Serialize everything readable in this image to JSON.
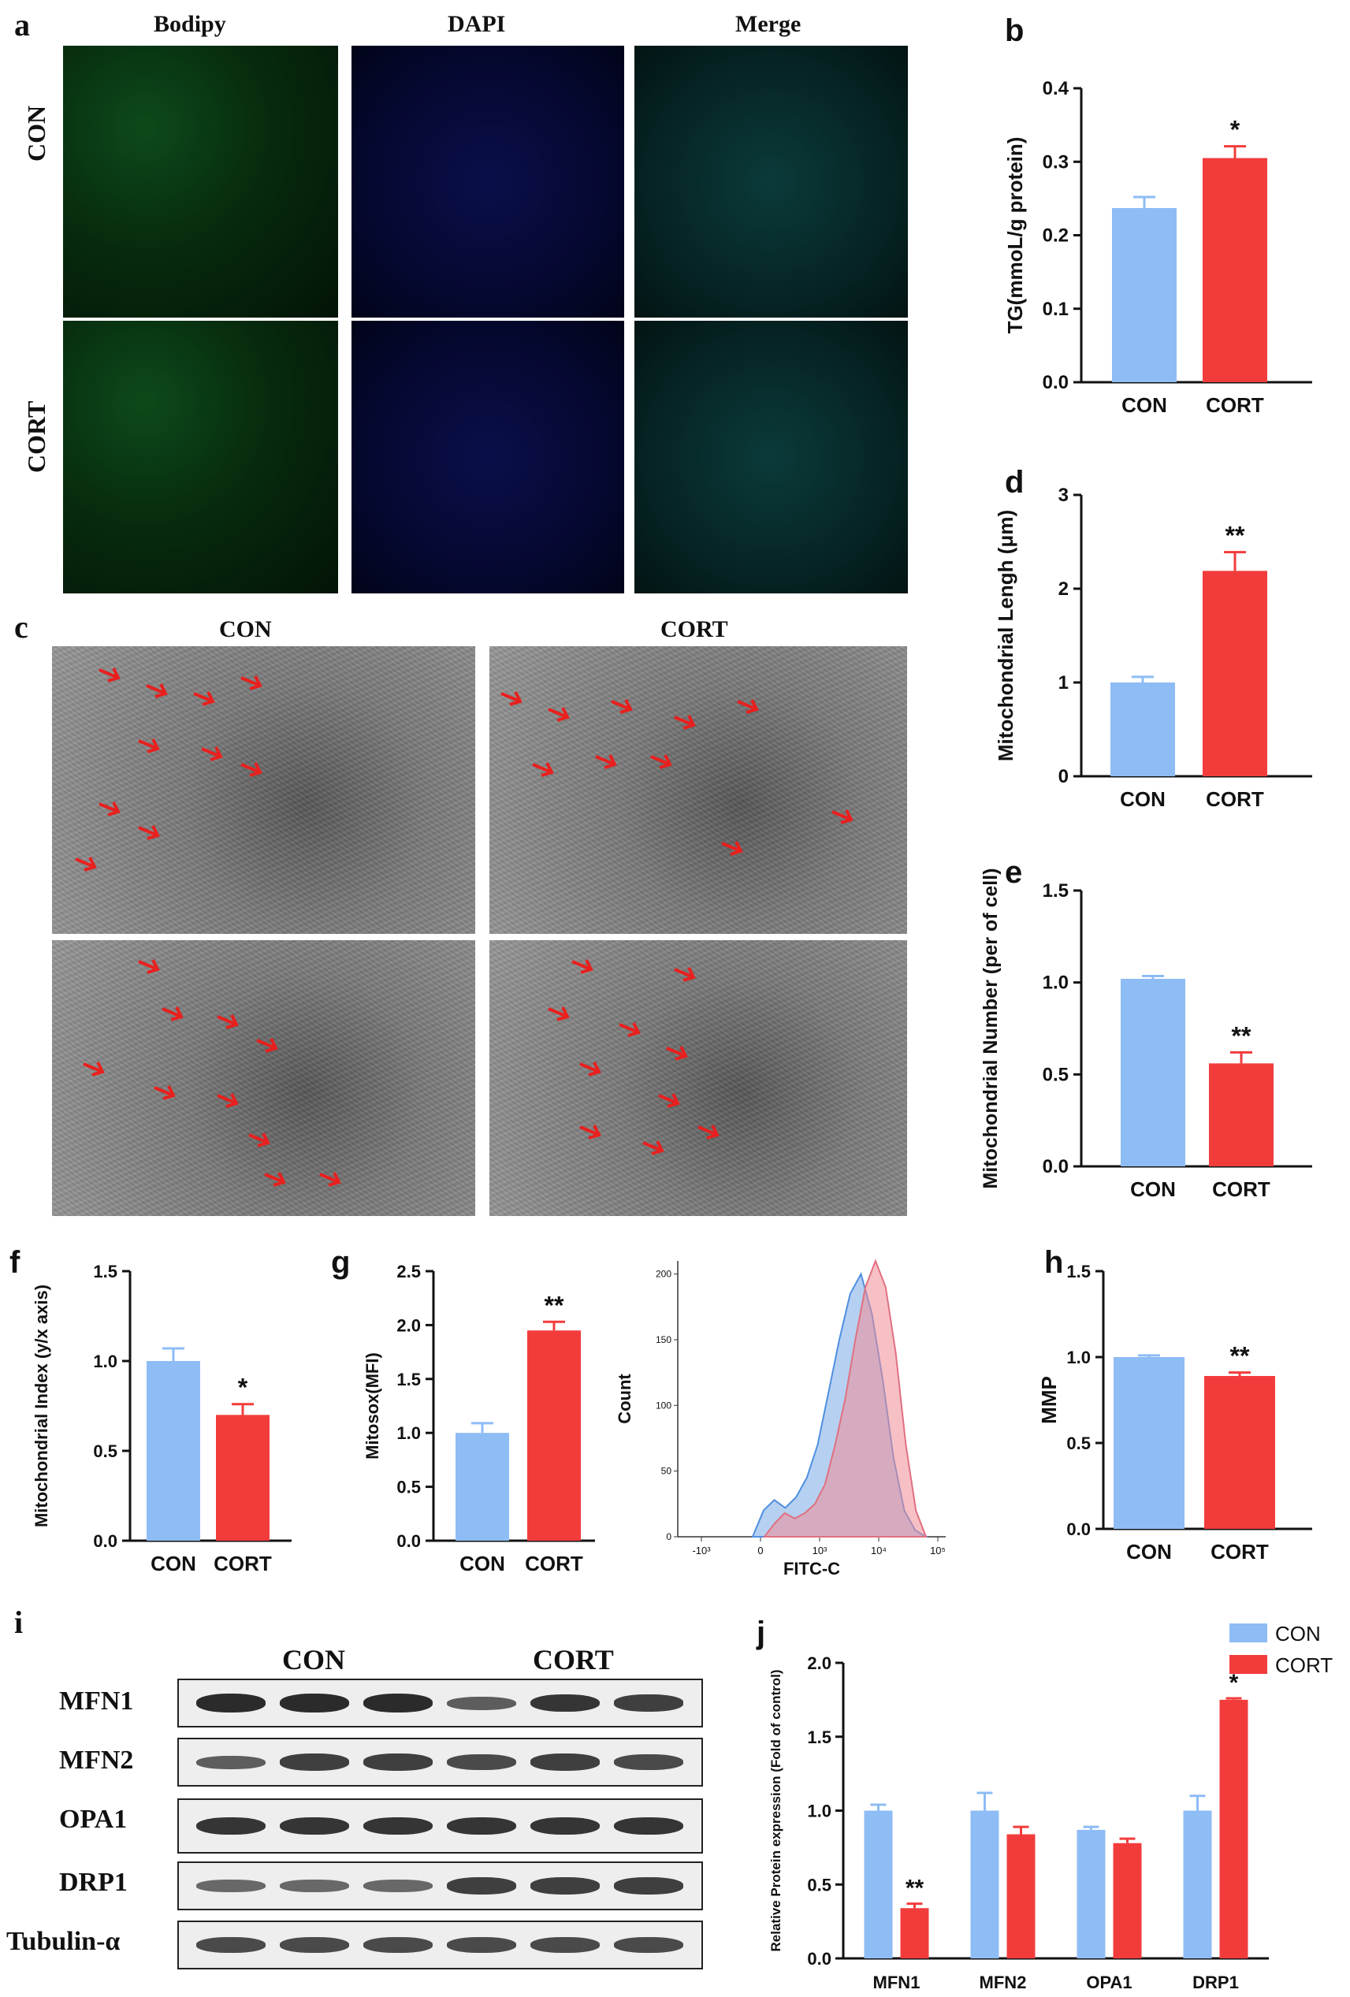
{
  "colors": {
    "con": "#8ebcf5",
    "cort": "#f23c3c",
    "axis": "#111111"
  },
  "panel_a": {
    "letter": "a",
    "columns": [
      "Bodipy",
      "DAPI",
      "Merge"
    ],
    "rows": [
      "CON",
      "CORT"
    ]
  },
  "panel_c": {
    "letter": "c",
    "columns": [
      "CON",
      "CORT"
    ]
  },
  "panel_g_flow": {
    "ylabel": "Count",
    "xlabel": "FITC-C"
  },
  "panel_i": {
    "letter": "i",
    "groups": [
      "CON",
      "CORT"
    ],
    "proteins": [
      "MFN1",
      "MFN2",
      "OPA1",
      "DRP1",
      "Tubulin-α"
    ]
  },
  "legend": {
    "con": "CON",
    "cort": "CORT"
  },
  "chart_data": [
    {
      "id": "b",
      "type": "bar",
      "letter": "b",
      "categories": [
        "CON",
        "CORT"
      ],
      "values": [
        0.237,
        0.305
      ],
      "errors": [
        0.015,
        0.016
      ],
      "significance": [
        "",
        "*"
      ],
      "ylabel": "TG(mmoL/g protein)",
      "ylim": [
        0,
        0.4
      ],
      "yticks": [
        "0.0",
        "0.1",
        "0.2",
        "0.3",
        "0.4"
      ]
    },
    {
      "id": "d",
      "type": "bar",
      "letter": "d",
      "categories": [
        "CON",
        "CORT"
      ],
      "values": [
        1.0,
        2.19
      ],
      "errors": [
        0.06,
        0.2
      ],
      "significance": [
        "",
        "**"
      ],
      "ylabel": "Mitochondrial Lengh (μm)",
      "ylim": [
        0,
        3
      ],
      "yticks": [
        "0",
        "1",
        "2",
        "3"
      ]
    },
    {
      "id": "e",
      "type": "bar",
      "letter": "e",
      "categories": [
        "CON",
        "CORT"
      ],
      "values": [
        1.02,
        0.56
      ],
      "errors": [
        0.015,
        0.06
      ],
      "significance": [
        "",
        "**"
      ],
      "ylabel": "Mitochondrial Number (per of cell)",
      "ylim": [
        0,
        1.5
      ],
      "yticks": [
        "0.0",
        "0.5",
        "1.0",
        "1.5"
      ]
    },
    {
      "id": "f",
      "type": "bar",
      "letter": "f",
      "categories": [
        "CON",
        "CORT"
      ],
      "values": [
        1.0,
        0.7
      ],
      "errors": [
        0.07,
        0.06
      ],
      "significance": [
        "",
        "*"
      ],
      "ylabel": "Mitochondrial Index (y/x axis)",
      "ylim": [
        0,
        1.5
      ],
      "yticks": [
        "0.0",
        "0.5",
        "1.0",
        "1.5"
      ]
    },
    {
      "id": "g",
      "type": "bar",
      "letter": "g",
      "categories": [
        "CON",
        "CORT"
      ],
      "values": [
        1.0,
        1.95
      ],
      "errors": [
        0.09,
        0.08
      ],
      "significance": [
        "",
        "**"
      ],
      "ylabel": "Mitosox(MFI)",
      "ylim": [
        0,
        2.5
      ],
      "yticks": [
        "0.0",
        "0.5",
        "1.0",
        "1.5",
        "2.0",
        "2.5"
      ]
    },
    {
      "id": "h",
      "type": "bar",
      "letter": "h",
      "categories": [
        "CON",
        "CORT"
      ],
      "values": [
        1.0,
        0.89
      ],
      "errors": [
        0.01,
        0.02
      ],
      "significance": [
        "",
        "**"
      ],
      "ylabel": "MMP",
      "ylim": [
        0,
        1.5
      ],
      "yticks": [
        "0.0",
        "0.5",
        "1.0",
        "1.5"
      ]
    },
    {
      "id": "j",
      "type": "bar",
      "letter": "j",
      "categories": [
        "MFN1",
        "MFN2",
        "OPA1",
        "DRP1"
      ],
      "series": [
        {
          "name": "CON",
          "values": [
            1.0,
            1.0,
            0.87,
            1.0
          ],
          "errors": [
            0.04,
            0.12,
            0.02,
            0.1
          ],
          "significance": [
            "",
            "",
            "",
            ""
          ]
        },
        {
          "name": "CORT",
          "values": [
            0.34,
            0.84,
            0.78,
            1.75
          ],
          "errors": [
            0.03,
            0.05,
            0.03,
            0.01
          ],
          "significance": [
            "**",
            "",
            "",
            "*"
          ]
        }
      ],
      "ylabel": "Relative Protein expression (Fold of control)",
      "ylim": [
        0,
        2.0
      ],
      "yticks": [
        "0.0",
        "0.5",
        "1.0",
        "1.5",
        "2.0"
      ]
    },
    {
      "id": "g2",
      "type": "area",
      "xlabel": "FITC-C",
      "ylabel": "Count",
      "xticks": [
        "-10³",
        "0",
        "10³",
        "10⁴",
        "10⁵"
      ],
      "yticks": [
        "0",
        "50",
        "100",
        "150",
        "200"
      ],
      "ylim": [
        0,
        210
      ],
      "series": [
        {
          "name": "CON",
          "values": [
            0,
            20,
            28,
            22,
            30,
            45,
            70,
            110,
            150,
            185,
            200,
            170,
            120,
            60,
            20,
            5,
            0
          ]
        },
        {
          "name": "CORT",
          "values": [
            0,
            10,
            18,
            14,
            18,
            25,
            40,
            70,
            105,
            150,
            190,
            210,
            190,
            140,
            70,
            20,
            0
          ]
        }
      ]
    }
  ]
}
